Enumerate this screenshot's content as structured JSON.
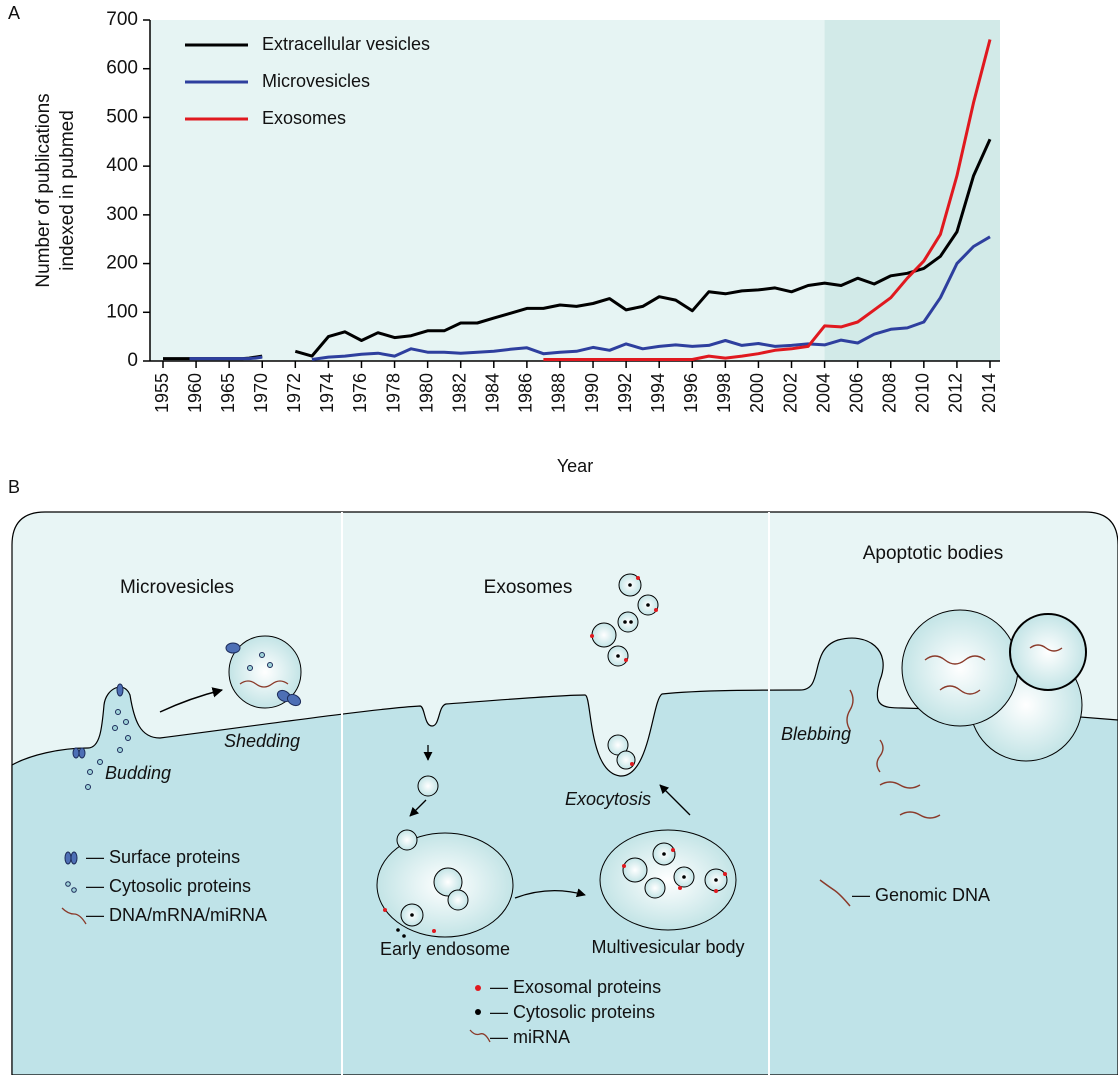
{
  "panel_labels": [
    "A",
    "B"
  ],
  "chart_data": {
    "type": "line",
    "xlabel": "Year",
    "ylabel": [
      "Number of publications",
      "indexed in pubmed"
    ],
    "x": [
      1955,
      1956,
      1957,
      1958,
      1959,
      1960,
      1961,
      1962,
      1963,
      1964,
      1965,
      1966,
      1967,
      1968,
      1969,
      1970,
      1971,
      1972,
      1973,
      1974,
      1975,
      1976,
      1977,
      1978,
      1979,
      1980,
      1981,
      1982,
      1983,
      1984,
      1985,
      1986,
      1987,
      1988,
      1989,
      1990,
      1991,
      1992,
      1993,
      1994,
      1995,
      1996,
      1997,
      1998,
      1999,
      2000,
      2001,
      2002,
      2003,
      2004,
      2005,
      2006,
      2007,
      2008,
      2009,
      2010,
      2011,
      2012,
      2013,
      2014
    ],
    "series": [
      {
        "name": "Extracellular vesicles",
        "color": "#000000",
        "values": [
          5,
          5,
          5,
          5,
          5,
          5,
          5,
          5,
          5,
          5,
          5,
          5,
          5,
          6,
          8,
          10,
          null,
          20,
          10,
          50,
          60,
          42,
          58,
          48,
          52,
          62,
          62,
          78,
          78,
          88,
          98,
          108,
          108,
          115,
          112,
          118,
          128,
          105,
          112,
          132,
          125,
          103,
          142,
          138,
          144,
          146,
          150,
          142,
          155,
          160,
          155,
          170,
          158,
          175,
          180,
          190,
          215,
          265,
          380,
          455
        ]
      },
      {
        "name": "Microvesicles",
        "color": "#2e3f9e",
        "values": [
          null,
          null,
          null,
          null,
          5,
          5,
          5,
          5,
          5,
          5,
          5,
          5,
          5,
          5,
          6,
          8,
          null,
          null,
          3,
          8,
          10,
          14,
          16,
          10,
          25,
          18,
          18,
          16,
          18,
          20,
          24,
          27,
          15,
          18,
          20,
          28,
          22,
          35,
          25,
          30,
          33,
          30,
          32,
          42,
          32,
          36,
          30,
          32,
          35,
          33,
          43,
          37,
          55,
          65,
          68,
          80,
          130,
          200,
          235,
          255
        ]
      },
      {
        "name": "Exosomes",
        "color": "#e0191f",
        "values": [
          null,
          null,
          null,
          null,
          null,
          null,
          null,
          null,
          null,
          null,
          null,
          null,
          null,
          null,
          null,
          null,
          null,
          null,
          null,
          null,
          null,
          null,
          null,
          null,
          null,
          null,
          null,
          null,
          null,
          null,
          null,
          null,
          3,
          3,
          3,
          3,
          3,
          3,
          3,
          3,
          3,
          3,
          10,
          6,
          10,
          15,
          22,
          25,
          30,
          72,
          70,
          80,
          105,
          130,
          170,
          205,
          260,
          380,
          530,
          660
        ]
      }
    ],
    "xlim": [
      1955,
      2014
    ],
    "xticks": [
      1955,
      1960,
      1965,
      1970,
      1972,
      1974,
      1976,
      1978,
      1980,
      1982,
      1984,
      1986,
      1988,
      1990,
      1992,
      1994,
      1996,
      1998,
      2000,
      2002,
      2004,
      2006,
      2008,
      2010,
      2012,
      2014
    ],
    "ylim": [
      0,
      700
    ],
    "yticks": [
      0,
      100,
      200,
      300,
      400,
      500,
      600,
      700
    ],
    "highlight_xlim": [
      2004,
      2014
    ],
    "background": "#e6f4f3",
    "highlight_color": "#d2eae8",
    "legend": "upper left"
  },
  "diagram": {
    "headings": [
      "Microvesicles",
      "Exosomes",
      "Apoptotic bodies"
    ],
    "process_labels": [
      "Budding",
      "Shedding",
      "Exocytosis",
      "Blebbing"
    ],
    "compartments": [
      "Early endosome",
      "Multivesicular body"
    ],
    "legend_left": [
      "— Surface proteins",
      "— Cytosolic proteins",
      "— DNA/mRNA/miRNA"
    ],
    "legend_middle": [
      "— Exosomal proteins",
      "— Cytosolic proteins",
      "— miRNA"
    ],
    "legend_right": [
      "— Genomic DNA"
    ]
  }
}
